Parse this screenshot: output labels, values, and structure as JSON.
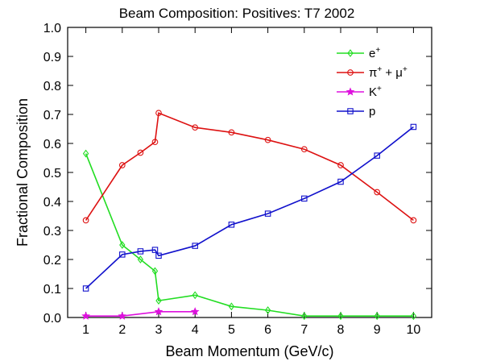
{
  "chart_data": {
    "type": "line",
    "title": "Beam Composition: Positives: T7 2002",
    "xlabel": "Beam Momentum (GeV/c)",
    "ylabel": "Fractional Composition",
    "xlim": [
      0.5,
      10.5
    ],
    "ylim": [
      0.0,
      1.0
    ],
    "x_ticks": [
      "1",
      "2",
      "3",
      "4",
      "5",
      "6",
      "7",
      "8",
      "9",
      "10"
    ],
    "y_ticks": [
      "0.0",
      "0.1",
      "0.2",
      "0.3",
      "0.4",
      "0.5",
      "0.6",
      "0.7",
      "0.8",
      "0.9",
      "1.0"
    ],
    "grid": false,
    "legend_position": "top-right",
    "series": [
      {
        "name": "e",
        "name_sup": "+",
        "color": "#22dd22",
        "marker": "diamond",
        "x": [
          1,
          2,
          2.5,
          2.9,
          3,
          4,
          5,
          6,
          7,
          8,
          9,
          10
        ],
        "y": [
          0.565,
          0.25,
          0.2,
          0.16,
          0.058,
          0.077,
          0.038,
          0.025,
          0.005,
          0.005,
          0.005,
          0.005
        ]
      },
      {
        "name": "π",
        "name_sup": "+",
        "name_mid": " + μ",
        "name_sup2": "+",
        "color": "#dd1111",
        "marker": "circle",
        "x": [
          1,
          2,
          2.5,
          2.9,
          3,
          4,
          5,
          6,
          7,
          8,
          9,
          10
        ],
        "y": [
          0.335,
          0.525,
          0.568,
          0.605,
          0.705,
          0.655,
          0.638,
          0.612,
          0.58,
          0.525,
          0.432,
          0.335
        ]
      },
      {
        "name": "K",
        "name_sup": "+",
        "color": "#dd11dd",
        "marker": "star",
        "x": [
          1,
          2,
          3,
          4
        ],
        "y": [
          0.005,
          0.005,
          0.02,
          0.02
        ]
      },
      {
        "name": "p",
        "name_sup": "",
        "color": "#1111cc",
        "marker": "square",
        "x": [
          1,
          2,
          2.5,
          2.9,
          3,
          4,
          5,
          6,
          7,
          8,
          9,
          10
        ],
        "y": [
          0.1,
          0.217,
          0.228,
          0.233,
          0.213,
          0.247,
          0.32,
          0.358,
          0.41,
          0.468,
          0.558,
          0.657
        ]
      }
    ]
  }
}
